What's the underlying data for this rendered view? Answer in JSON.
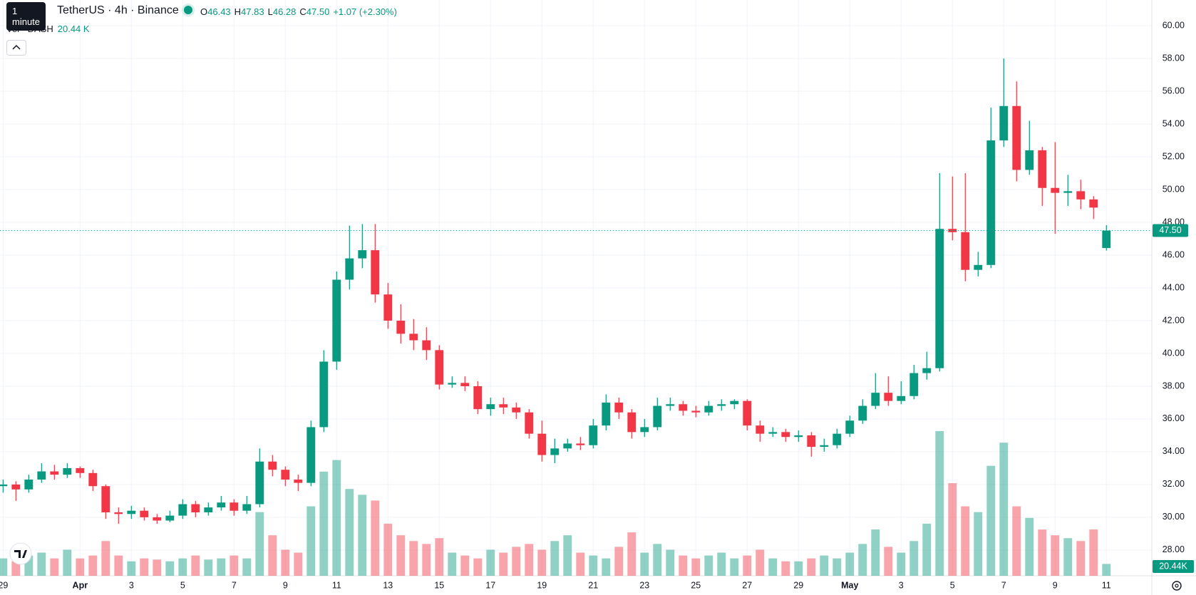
{
  "chart_data": {
    "type": "candlestick",
    "tooltip": "1 minute",
    "title": "TetherUS · 4h · Binance",
    "last_bar": {
      "open": "46.43",
      "high": "47.83",
      "low": "46.28",
      "close": "47.50",
      "change": "+1.07 (+2.30%)"
    },
    "volume_title": "Vol · DASH",
    "volume_last_label": "20.44 K",
    "volume_badge": "20.44K",
    "up_color": "#089981",
    "down_color": "#f23645",
    "x": [
      0,
      0.5,
      1,
      1.5,
      2,
      2.5,
      3,
      3.5,
      4,
      4.5,
      5,
      5.5,
      6,
      6.5,
      7,
      7.5,
      8,
      8.5,
      9,
      9.5,
      10,
      10.5,
      11,
      11.5,
      12,
      12.5,
      13,
      13.5,
      14,
      14.5,
      15,
      15.5,
      16,
      16.5,
      17,
      17.5,
      18,
      18.5,
      19,
      19.5,
      20,
      20.5,
      21,
      21.5,
      22,
      22.5,
      23,
      23.5,
      24,
      24.5,
      25,
      25.5,
      26,
      26.5,
      27,
      27.5,
      28,
      28.5,
      29,
      29.5,
      30,
      30.5,
      31,
      31.5,
      32,
      32.5,
      33,
      33.5,
      34,
      34.5,
      35,
      35.5,
      36,
      36.5,
      37,
      37.5,
      38,
      38.5,
      39,
      39.5,
      40,
      40.5,
      41,
      41.5,
      42,
      42.5,
      43
    ],
    "open": [
      31.9,
      32.0,
      31.7,
      32.3,
      32.8,
      32.6,
      33.0,
      32.7,
      31.9,
      30.3,
      30.2,
      30.4,
      30.0,
      29.8,
      30.1,
      30.8,
      30.3,
      30.6,
      30.9,
      30.4,
      30.8,
      33.4,
      32.9,
      32.3,
      32.1,
      35.5,
      39.5,
      44.5,
      45.8,
      46.3,
      43.6,
      42.0,
      41.2,
      40.8,
      40.2,
      38.1,
      38.2,
      38.0,
      36.6,
      36.9,
      36.7,
      36.4,
      35.1,
      33.8,
      34.2,
      34.5,
      34.4,
      35.6,
      37.0,
      36.4,
      35.2,
      35.5,
      36.8,
      36.9,
      36.5,
      36.4,
      36.8,
      36.9,
      37.1,
      35.6,
      35.1,
      35.2,
      34.9,
      35.0,
      34.3,
      34.4,
      35.1,
      35.9,
      36.8,
      37.6,
      37.1,
      37.4,
      38.8,
      39.1,
      47.6,
      47.4,
      45.1,
      45.4,
      53.0,
      55.1,
      51.2,
      52.4,
      50.1,
      49.8,
      49.9,
      49.4,
      46.43
    ],
    "high": [
      32.3,
      32.2,
      32.6,
      33.3,
      33.2,
      33.3,
      33.1,
      32.9,
      32.0,
      30.6,
      30.7,
      30.6,
      30.2,
      30.4,
      31.1,
      31.0,
      30.9,
      31.3,
      31.1,
      31.3,
      34.2,
      33.8,
      33.1,
      32.6,
      35.9,
      40.2,
      45.0,
      47.8,
      47.9,
      47.9,
      44.3,
      43.0,
      42.1,
      41.6,
      40.5,
      38.6,
      38.6,
      38.3,
      37.3,
      37.3,
      37.0,
      36.6,
      35.9,
      34.8,
      34.8,
      34.9,
      36.0,
      37.5,
      37.3,
      36.6,
      36.0,
      37.3,
      37.3,
      37.1,
      36.8,
      37.1,
      37.2,
      37.2,
      37.2,
      35.9,
      35.5,
      35.4,
      35.3,
      35.2,
      34.8,
      35.4,
      36.2,
      37.2,
      38.8,
      38.6,
      38.3,
      39.3,
      40.1,
      51.0,
      50.8,
      51.0,
      46.2,
      55.0,
      58.0,
      56.6,
      54.2,
      52.6,
      52.9,
      50.9,
      50.6,
      49.6,
      47.83
    ],
    "low": [
      31.5,
      31.0,
      31.5,
      32.1,
      32.3,
      32.4,
      32.4,
      31.6,
      29.9,
      29.6,
      29.9,
      29.8,
      29.6,
      29.7,
      29.9,
      30.0,
      30.1,
      30.4,
      30.1,
      30.2,
      30.6,
      32.5,
      31.9,
      31.6,
      31.9,
      35.2,
      39.0,
      43.9,
      45.2,
      43.1,
      41.5,
      40.6,
      40.2,
      39.6,
      37.8,
      37.9,
      37.7,
      36.3,
      36.2,
      36.3,
      36.0,
      34.8,
      33.4,
      33.3,
      34.0,
      34.1,
      34.2,
      35.3,
      36.0,
      34.8,
      34.9,
      35.3,
      36.5,
      36.2,
      36.1,
      36.2,
      36.5,
      36.6,
      35.3,
      34.6,
      34.9,
      34.6,
      34.6,
      33.7,
      34.0,
      34.2,
      34.9,
      35.7,
      36.6,
      36.8,
      36.9,
      37.2,
      38.4,
      38.9,
      46.9,
      44.4,
      44.7,
      45.2,
      52.6,
      50.5,
      50.9,
      49.0,
      47.3,
      49.0,
      48.8,
      48.2,
      46.28
    ],
    "close": [
      32.0,
      31.7,
      32.3,
      32.8,
      32.6,
      33.0,
      32.7,
      31.9,
      30.3,
      30.2,
      30.4,
      30.0,
      29.8,
      30.1,
      30.8,
      30.3,
      30.6,
      30.9,
      30.4,
      30.8,
      33.4,
      32.9,
      32.3,
      32.1,
      35.5,
      39.5,
      44.5,
      45.8,
      46.3,
      43.6,
      42.0,
      41.2,
      40.8,
      40.2,
      38.1,
      38.2,
      38.0,
      36.6,
      36.9,
      36.7,
      36.4,
      35.1,
      33.8,
      34.2,
      34.5,
      34.4,
      35.6,
      37.0,
      36.4,
      35.2,
      35.5,
      36.8,
      36.9,
      36.5,
      36.4,
      36.8,
      36.9,
      37.1,
      35.6,
      35.1,
      35.2,
      34.9,
      35.0,
      34.3,
      34.4,
      35.1,
      35.9,
      36.8,
      37.6,
      37.1,
      37.4,
      38.8,
      39.1,
      47.6,
      47.4,
      45.1,
      45.4,
      53.0,
      55.1,
      51.2,
      52.4,
      50.1,
      49.8,
      49.9,
      49.4,
      48.9,
      47.5
    ],
    "volume": [
      30,
      25,
      35,
      40,
      30,
      45,
      30,
      35,
      60,
      35,
      25,
      30,
      28,
      25,
      30,
      35,
      28,
      30,
      35,
      30,
      110,
      70,
      45,
      40,
      120,
      180,
      200,
      150,
      140,
      130,
      90,
      70,
      60,
      55,
      65,
      40,
      35,
      30,
      45,
      40,
      50,
      55,
      45,
      60,
      70,
      40,
      35,
      30,
      50,
      75,
      40,
      55,
      45,
      35,
      30,
      35,
      40,
      30,
      35,
      45,
      30,
      25,
      25,
      30,
      35,
      30,
      40,
      55,
      80,
      50,
      40,
      60,
      90,
      250,
      160,
      120,
      110,
      190,
      230,
      120,
      100,
      80,
      70,
      65,
      60,
      80,
      20.44
    ],
    "xlim": [
      -0.12,
      44.77
    ],
    "xticks": [
      {
        "value": 0,
        "label": "29"
      },
      {
        "value": 3,
        "label": "Apr"
      },
      {
        "value": 5,
        "label": "3"
      },
      {
        "value": 7,
        "label": "5"
      },
      {
        "value": 9,
        "label": "7"
      },
      {
        "value": 11,
        "label": "9"
      },
      {
        "value": 13,
        "label": "11"
      },
      {
        "value": 15,
        "label": "13"
      },
      {
        "value": 17,
        "label": "15"
      },
      {
        "value": 19,
        "label": "17"
      },
      {
        "value": 21,
        "label": "19"
      },
      {
        "value": 23,
        "label": "21"
      },
      {
        "value": 25,
        "label": "23"
      },
      {
        "value": 27,
        "label": "25"
      },
      {
        "value": 29,
        "label": "27"
      },
      {
        "value": 31,
        "label": "29"
      },
      {
        "value": 33,
        "label": "May"
      },
      {
        "value": 35,
        "label": "3"
      },
      {
        "value": 37,
        "label": "5"
      },
      {
        "value": 39,
        "label": "7"
      },
      {
        "value": 41,
        "label": "9"
      },
      {
        "value": 43,
        "label": "11"
      }
    ],
    "ylim": [
      26.43,
      61.57
    ],
    "yticks": [
      {
        "value": 28,
        "label": "28.00"
      },
      {
        "value": 30,
        "label": "30.00"
      },
      {
        "value": 32,
        "label": "32.00"
      },
      {
        "value": 34,
        "label": "34.00"
      },
      {
        "value": 36,
        "label": "36.00"
      },
      {
        "value": 38,
        "label": "38.00"
      },
      {
        "value": 40,
        "label": "40.00"
      },
      {
        "value": 42,
        "label": "42.00"
      },
      {
        "value": 44,
        "label": "44.00"
      },
      {
        "value": 46,
        "label": "46.00"
      },
      {
        "value": 48,
        "label": "48.00"
      },
      {
        "value": 50,
        "label": "50.00"
      },
      {
        "value": 52,
        "label": "52.00"
      },
      {
        "value": 54,
        "label": "54.00"
      },
      {
        "value": 56,
        "label": "56.00"
      },
      {
        "value": 58,
        "label": "58.00"
      },
      {
        "value": 60,
        "label": "60.00"
      }
    ],
    "grid": true
  }
}
